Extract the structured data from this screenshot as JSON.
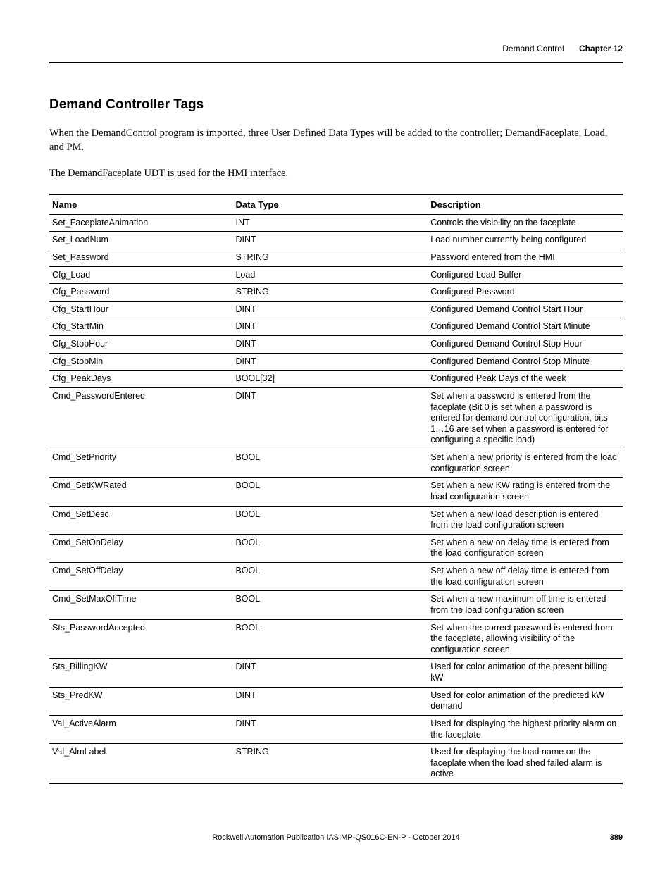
{
  "header": {
    "section": "Demand Control",
    "chapter": "Chapter 12"
  },
  "title": "Demand Controller Tags",
  "paragraphs": [
    "When the DemandControl program is imported, three User Defined Data Types will be added to the controller; DemandFaceplate, Load, and PM.",
    "The DemandFaceplate UDT is used for the HMI interface."
  ],
  "table": {
    "headers": {
      "name": "Name",
      "type": "Data Type",
      "desc": "Description"
    },
    "rows": [
      {
        "name": "Set_FaceplateAnimation",
        "type": "INT",
        "desc": "Controls the visibility on the faceplate"
      },
      {
        "name": "Set_LoadNum",
        "type": "DINT",
        "desc": "Load number currently being configured"
      },
      {
        "name": "Set_Password",
        "type": "STRING",
        "desc": "Password entered from the HMI"
      },
      {
        "name": "Cfg_Load",
        "type": "Load",
        "desc": "Configured Load Buffer"
      },
      {
        "name": "Cfg_Password",
        "type": "STRING",
        "desc": "Configured Password"
      },
      {
        "name": "Cfg_StartHour",
        "type": "DINT",
        "desc": "Configured Demand Control Start Hour"
      },
      {
        "name": "Cfg_StartMin",
        "type": "DINT",
        "desc": "Configured Demand Control Start Minute"
      },
      {
        "name": "Cfg_StopHour",
        "type": "DINT",
        "desc": "Configured Demand Control Stop Hour"
      },
      {
        "name": "Cfg_StopMin",
        "type": "DINT",
        "desc": "Configured Demand Control Stop Minute"
      },
      {
        "name": "Cfg_PeakDays",
        "type": "BOOL[32]",
        "desc": "Configured Peak Days of the week"
      },
      {
        "name": "Cmd_PasswordEntered",
        "type": "DINT",
        "desc": "Set when a password is entered from the faceplate (Bit 0 is set when a password is entered for demand control configuration, bits 1…16 are set when a password is entered for configuring a specific load)"
      },
      {
        "name": "Cmd_SetPriority",
        "type": "BOOL",
        "desc": "Set when a new priority is entered from the load configuration screen"
      },
      {
        "name": "Cmd_SetKWRated",
        "type": "BOOL",
        "desc": "Set when a new KW rating is entered from the load configuration screen"
      },
      {
        "name": "Cmd_SetDesc",
        "type": "BOOL",
        "desc": "Set when a new load description is entered from the load configuration screen"
      },
      {
        "name": "Cmd_SetOnDelay",
        "type": "BOOL",
        "desc": "Set when a new on delay time is entered from the load configuration screen"
      },
      {
        "name": "Cmd_SetOffDelay",
        "type": "BOOL",
        "desc": "Set when a new off delay time is entered from the load configuration screen"
      },
      {
        "name": "Cmd_SetMaxOffTime",
        "type": "BOOL",
        "desc": "Set when a new maximum off time is entered from the load configuration screen"
      },
      {
        "name": "Sts_PasswordAccepted",
        "type": "BOOL",
        "desc": "Set when the correct password is entered from the faceplate, allowing visibility of the configuration screen"
      },
      {
        "name": "Sts_BillingKW",
        "type": "DINT",
        "desc": "Used for color animation of the present billing kW"
      },
      {
        "name": "Sts_PredKW",
        "type": "DINT",
        "desc": "Used for color animation of the predicted kW demand"
      },
      {
        "name": "Val_ActiveAlarm",
        "type": "DINT",
        "desc": "Used for displaying the highest priority alarm on the faceplate"
      },
      {
        "name": "Val_AlmLabel",
        "type": "STRING",
        "desc": "Used for displaying the load name on the faceplate when the load shed failed alarm is active"
      }
    ]
  },
  "footer": {
    "pub": "Rockwell Automation Publication IASIMP-QS016C-EN-P - October 2014",
    "page": "389"
  }
}
